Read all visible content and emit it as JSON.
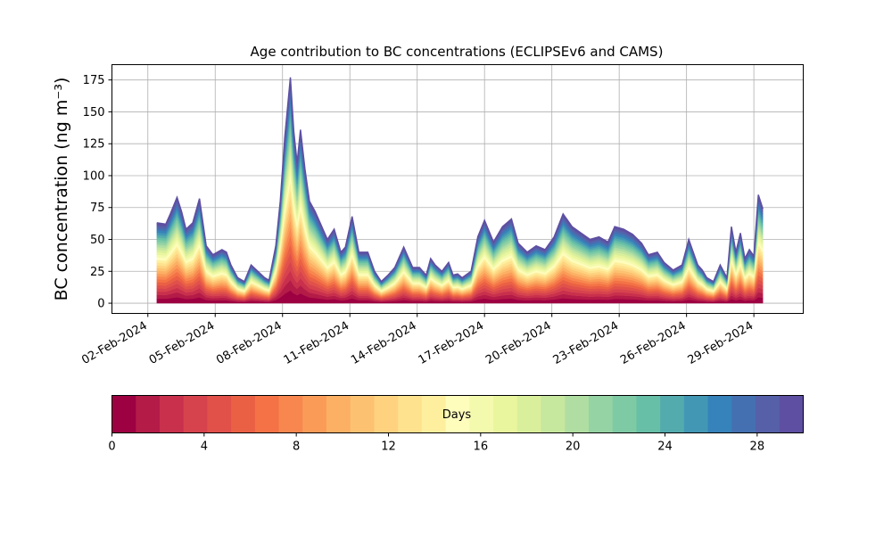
{
  "figure": {
    "title": "Age contribution to BC concentrations (ECLIPSEv6 and CAMS)",
    "ylabel": "BC concentration (ng m⁻³)"
  },
  "colors": {
    "palette": [
      "#9e0142",
      "#b41b47",
      "#c9304c",
      "#d7434d",
      "#e1514a",
      "#ea6044",
      "#f47245",
      "#f7874f",
      "#fa9c58",
      "#fcb064",
      "#fdc271",
      "#fed27f",
      "#fee28e",
      "#feef9e",
      "#fffdbc",
      "#f4faad",
      "#e9f69d",
      "#d9ef9b",
      "#c6e79e",
      "#b0dea2",
      "#95d3a4",
      "#7ecaa5",
      "#66bfa6",
      "#54abae",
      "#4297b5",
      "#3682ba",
      "#4470b1",
      "#5560a9",
      "#5e4fa2"
    ]
  },
  "chart_data": {
    "type": "area",
    "stacked": true,
    "title": "Age contribution to BC concentrations (ECLIPSEv6 and CAMS)",
    "ylabel": "BC concentration (ng m⁻³)",
    "xlim": [
      -0.6,
      30.2
    ],
    "ylim": [
      -8,
      187
    ],
    "xticks": [
      1,
      4,
      7,
      10,
      13,
      16,
      19,
      22,
      25,
      28
    ],
    "xtick_labels": [
      "02-Feb-2024",
      "05-Feb-2024",
      "08-Feb-2024",
      "11-Feb-2024",
      "14-Feb-2024",
      "17-Feb-2024",
      "20-Feb-2024",
      "23-Feb-2024",
      "26-Feb-2024",
      "29-Feb-2024"
    ],
    "yticks": [
      0,
      25,
      50,
      75,
      100,
      125,
      150,
      175
    ],
    "grid": true,
    "x_time_days_since_feb01": [
      1.4,
      1.8,
      2.0,
      2.3,
      2.5,
      2.7,
      3.0,
      3.3,
      3.6,
      3.9,
      4.1,
      4.3,
      4.5,
      4.7,
      5.0,
      5.3,
      5.6,
      5.9,
      6.2,
      6.4,
      6.7,
      6.9,
      7.1,
      7.35,
      7.5,
      7.65,
      7.8,
      8.0,
      8.2,
      8.45,
      8.7,
      9.0,
      9.3,
      9.6,
      9.8,
      10.1,
      10.4,
      10.8,
      11.1,
      11.4,
      11.7,
      12.0,
      12.4,
      12.8,
      13.1,
      13.4,
      13.6,
      13.8,
      14.1,
      14.4,
      14.6,
      14.8,
      15.0,
      15.4,
      15.7,
      16.0,
      16.4,
      16.8,
      17.2,
      17.5,
      17.9,
      18.3,
      18.7,
      19.1,
      19.5,
      19.9,
      20.3,
      20.7,
      21.1,
      21.5,
      21.8,
      22.2,
      22.6,
      23.0,
      23.3,
      23.7,
      24.0,
      24.4,
      24.8,
      25.1,
      25.3,
      25.5,
      25.7,
      25.9,
      26.2,
      26.5,
      26.8,
      27.0,
      27.2,
      27.4,
      27.6,
      27.8,
      28.0,
      28.2,
      28.4
    ],
    "total": [
      63,
      62,
      70,
      83,
      72,
      58,
      63,
      82,
      45,
      38,
      40,
      42,
      40,
      30,
      20,
      17,
      30,
      25,
      20,
      18,
      45,
      80,
      130,
      177,
      135,
      110,
      136,
      105,
      80,
      72,
      62,
      50,
      58,
      40,
      44,
      68,
      40,
      40,
      25,
      17,
      22,
      28,
      44,
      28,
      28,
      22,
      35,
      30,
      25,
      32,
      22,
      23,
      20,
      25,
      52,
      65,
      48,
      60,
      66,
      47,
      40,
      45,
      42,
      52,
      70,
      60,
      55,
      50,
      52,
      48,
      60,
      58,
      54,
      47,
      38,
      40,
      32,
      26,
      30,
      50,
      40,
      30,
      26,
      20,
      17,
      30,
      20,
      60,
      40,
      55,
      35,
      42,
      37,
      85,
      74
    ]
  },
  "colorbar": {
    "label": "Days",
    "ticks": [
      "0",
      "4",
      "8",
      "12",
      "16",
      "20",
      "24",
      "28"
    ]
  }
}
